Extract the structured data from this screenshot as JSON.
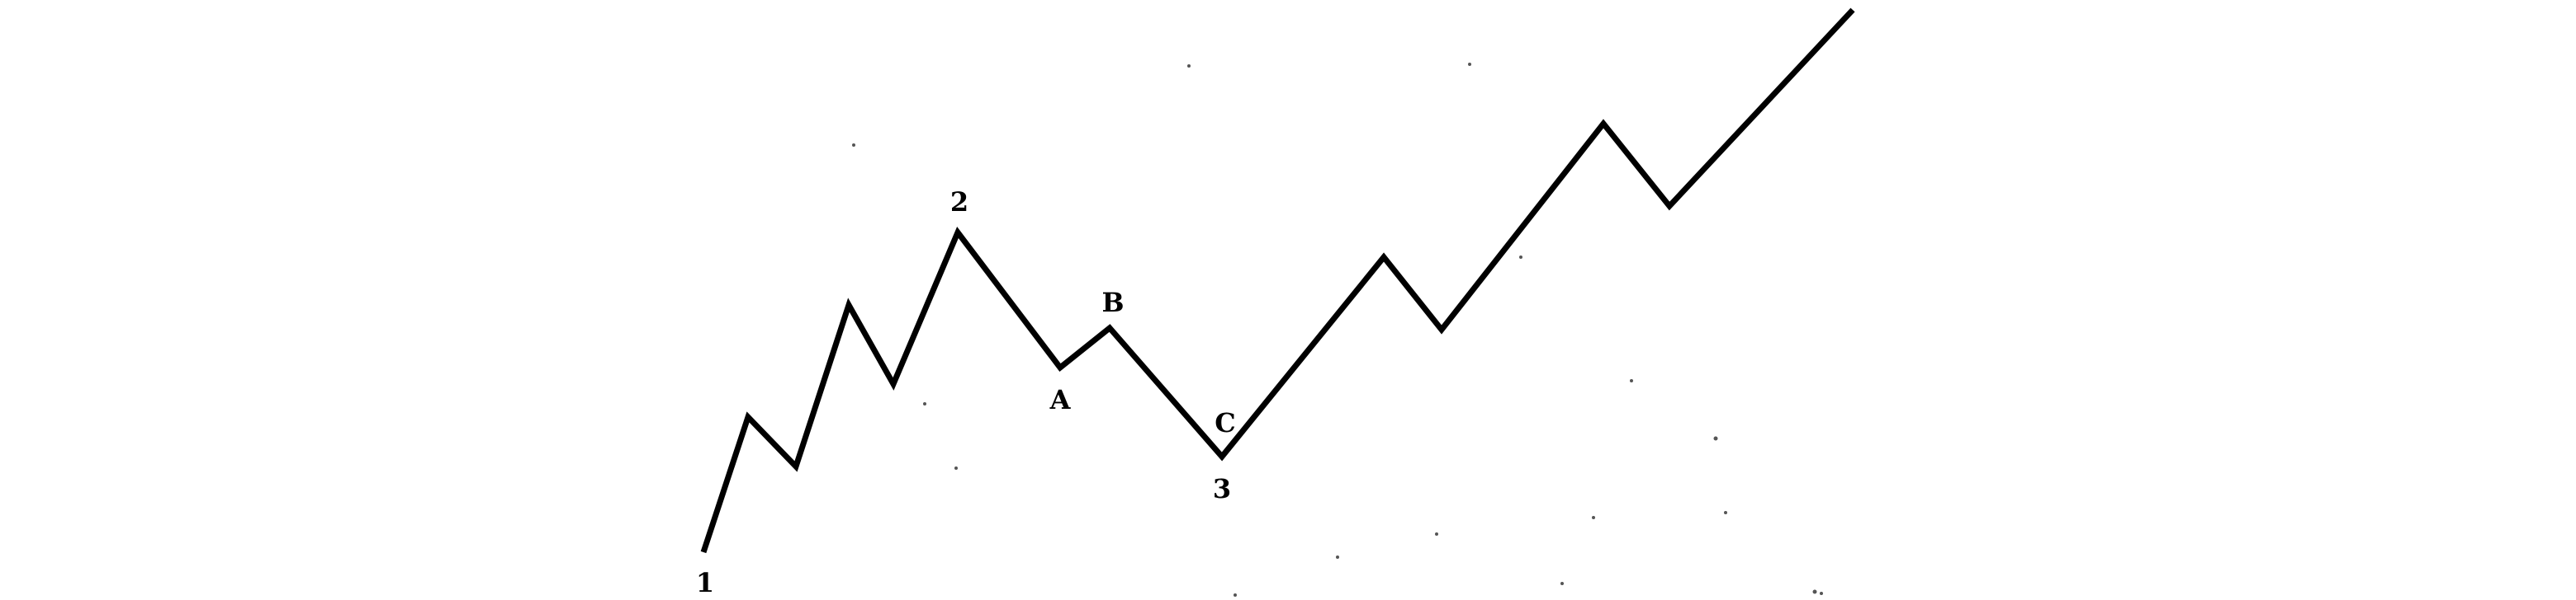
{
  "diagram": {
    "line_color": "#000000",
    "background": "#ffffff",
    "labels": {
      "point_1": "1",
      "point_2": "2",
      "point_a": "A",
      "point_b": "B",
      "point_c": "C",
      "point_3": "3"
    }
  }
}
